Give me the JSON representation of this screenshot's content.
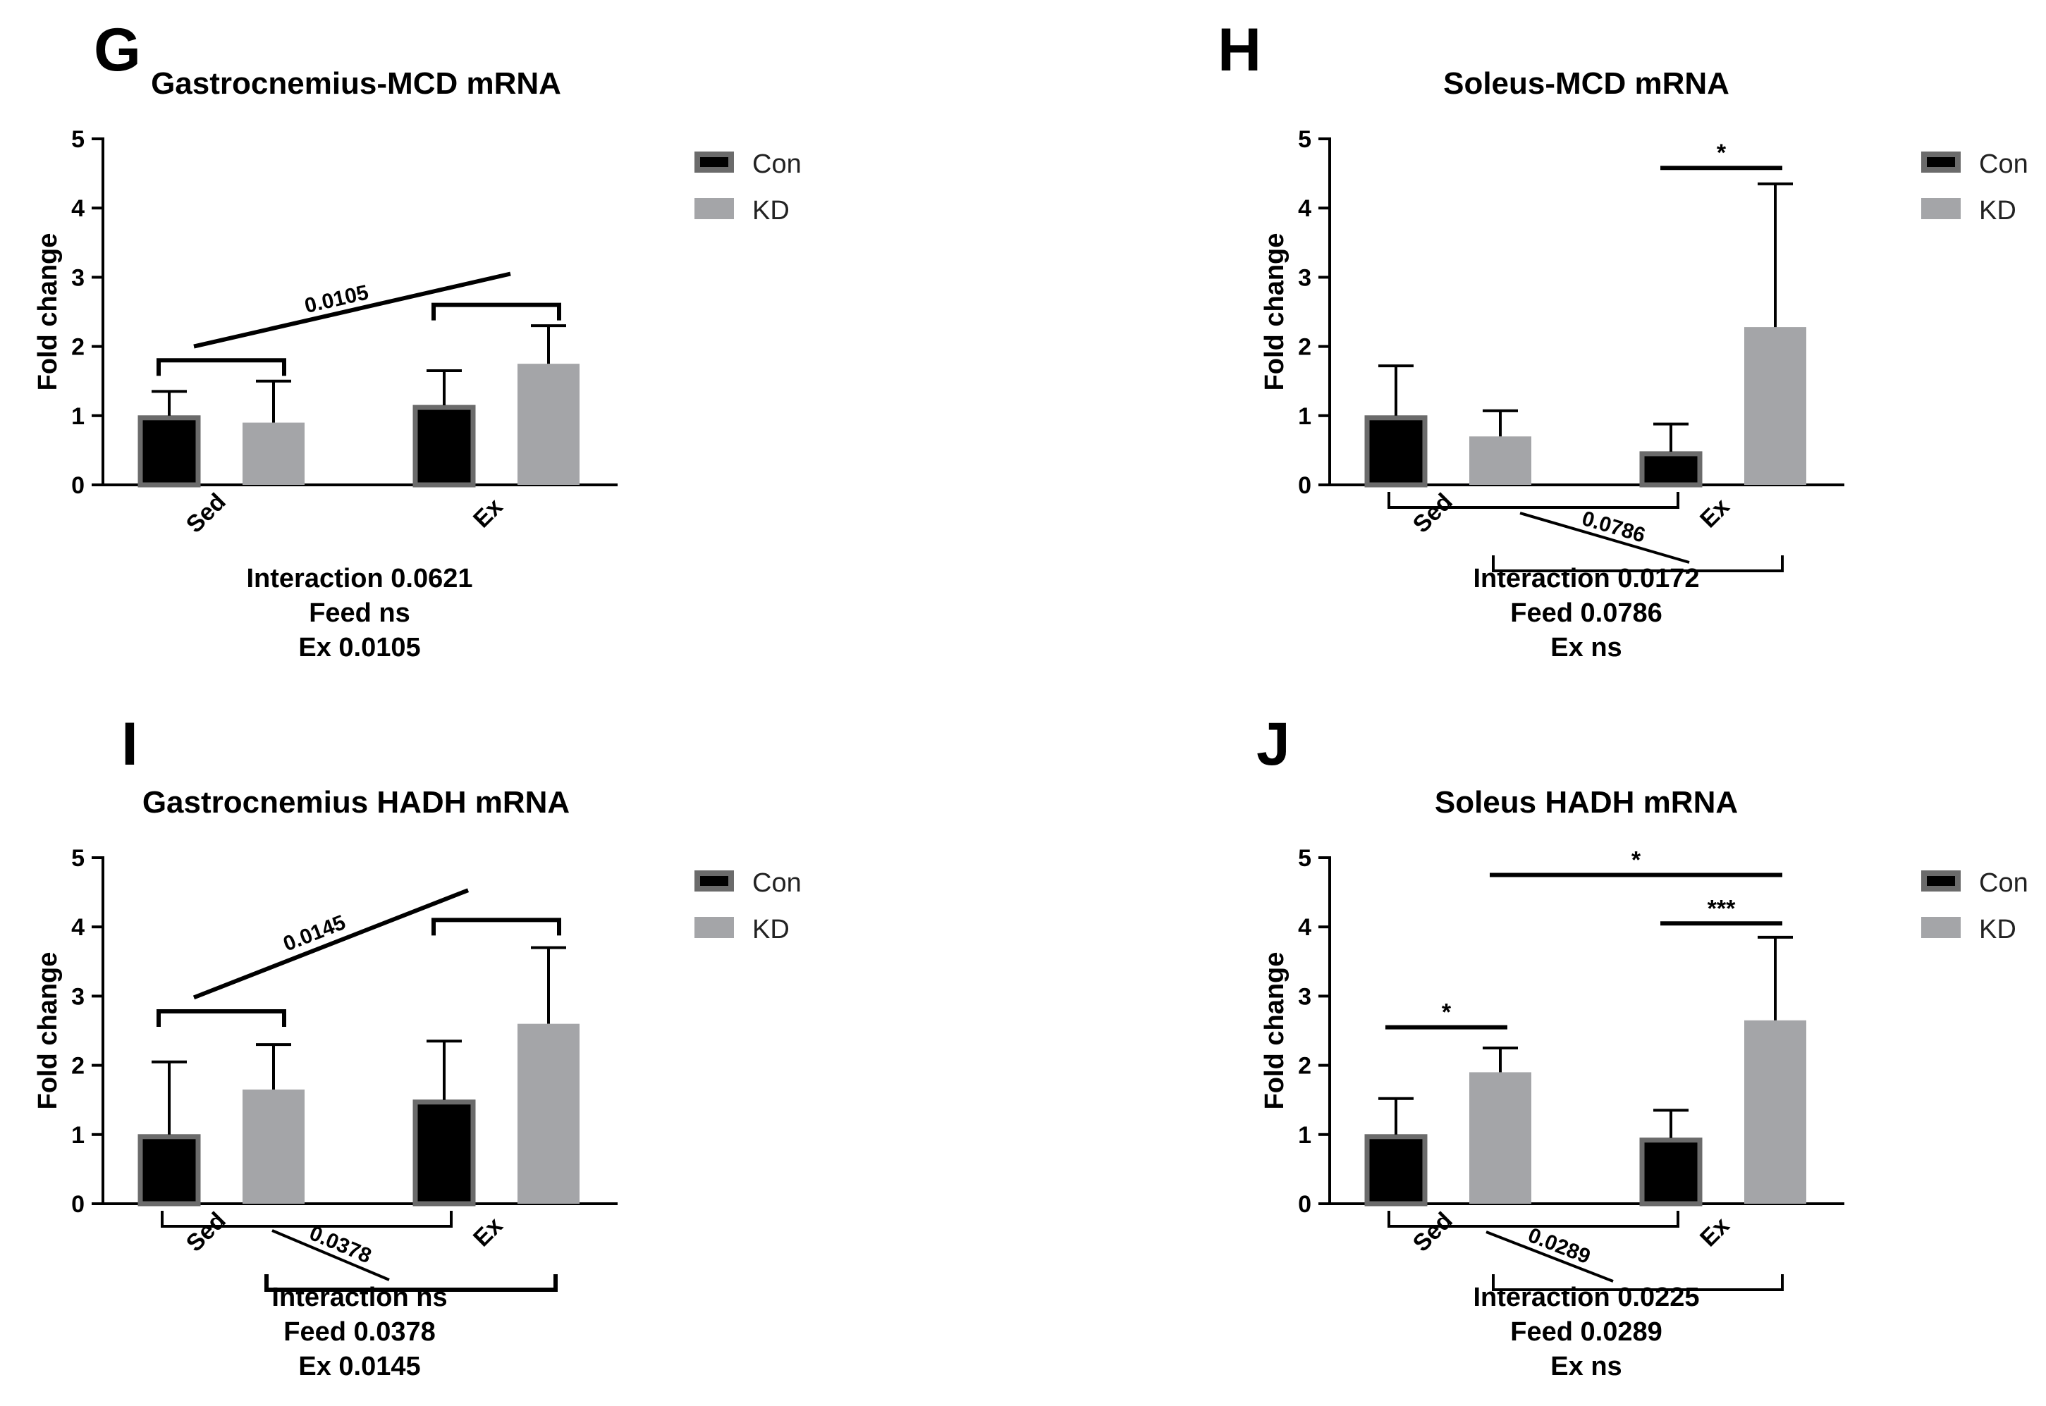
{
  "colors": {
    "con_fill": "#000000",
    "con_stroke": "#6b6b6b",
    "kd_fill": "#a4a5a8",
    "axis": "#000000"
  },
  "legend": [
    {
      "key": "con",
      "label": "Con"
    },
    {
      "key": "kd",
      "label": "KD"
    }
  ],
  "chart_data": [
    {
      "panel": "G",
      "type": "bar",
      "title": "Gastrocnemius-MCD mRNA",
      "ylabel": "Fold change",
      "ylim": [
        0,
        5
      ],
      "yticks": [
        "0",
        "1",
        "2",
        "3",
        "4",
        "5"
      ],
      "categories": [
        "Sed",
        "Ex"
      ],
      "series": [
        {
          "name": "Con",
          "values": [
            1.0,
            1.15
          ],
          "errors": [
            1.35,
            1.65
          ]
        },
        {
          "name": "KD",
          "values": [
            0.9,
            1.75
          ],
          "errors": [
            1.5,
            2.3
          ]
        }
      ],
      "stats": [
        "Interaction 0.0621",
        "Feed ns",
        "Ex 0.0105"
      ],
      "annotations": [
        {
          "kind": "bracket",
          "label": "",
          "y": 1.8,
          "from": "Sed-Con",
          "to": "Sed-KD"
        },
        {
          "kind": "bracket",
          "label": "",
          "y": 2.6,
          "from": "Ex-Con",
          "to": "Ex-KD"
        },
        {
          "kind": "diagonal",
          "label": "0.0105",
          "y_start": 2.0,
          "y_end": 3.05
        }
      ]
    },
    {
      "panel": "H",
      "type": "bar",
      "title": "Soleus-MCD mRNA",
      "ylabel": "Fold change",
      "ylim": [
        0,
        5
      ],
      "yticks": [
        "0",
        "1",
        "2",
        "3",
        "4",
        "5"
      ],
      "categories": [
        "Sed",
        "Ex"
      ],
      "series": [
        {
          "name": "Con",
          "values": [
            1.0,
            0.48
          ],
          "errors": [
            1.72,
            0.88
          ]
        },
        {
          "name": "KD",
          "values": [
            0.7,
            2.28
          ],
          "errors": [
            1.07,
            4.35
          ]
        }
      ],
      "stats": [
        "Interaction 0.0172",
        "Feed 0.0786",
        "Ex ns"
      ],
      "annotations": [
        {
          "kind": "line",
          "label": "*",
          "y": 4.58,
          "from": "Ex-Con",
          "to": "Ex-KD"
        },
        {
          "kind": "under-bracket",
          "label": "",
          "from": "Sed-Con",
          "to": "Ex-Con",
          "level": 1
        },
        {
          "kind": "under-bracket",
          "label": "",
          "from": "Sed-KD",
          "to": "Ex-KD",
          "level": 2
        },
        {
          "kind": "under-diagonal",
          "label": "0.0786"
        }
      ]
    },
    {
      "panel": "I",
      "type": "bar",
      "title": "Gastrocnemius HADH mRNA",
      "ylabel": "Fold change",
      "ylim": [
        0,
        5
      ],
      "yticks": [
        "0",
        "1",
        "2",
        "3",
        "4",
        "5"
      ],
      "categories": [
        "Sed",
        "Ex"
      ],
      "series": [
        {
          "name": "Con",
          "values": [
            1.0,
            1.5
          ],
          "errors": [
            2.05,
            2.35
          ]
        },
        {
          "name": "KD",
          "values": [
            1.65,
            2.6
          ],
          "errors": [
            2.3,
            3.7
          ]
        }
      ],
      "stats": [
        "Interaction ns",
        "Feed 0.0378",
        "Ex 0.0145"
      ],
      "annotations": [
        {
          "kind": "bracket",
          "label": "",
          "y": 2.78,
          "from": "Sed-Con",
          "to": "Sed-KD"
        },
        {
          "kind": "bracket",
          "label": "",
          "y": 4.1,
          "from": "Ex-Con",
          "to": "Ex-KD"
        },
        {
          "kind": "diagonal",
          "label": "0.0145",
          "y_start": 2.98,
          "y_end": 4.53
        },
        {
          "kind": "under-bracket",
          "label": "",
          "from": "Sed-Con",
          "to": "Ex-Con",
          "level": 1
        },
        {
          "kind": "under-bracket",
          "label": "",
          "from": "Sed-KD",
          "to": "Ex-KD",
          "level": 2
        },
        {
          "kind": "under-diagonal",
          "label": "0.0378"
        }
      ]
    },
    {
      "panel": "J",
      "type": "bar",
      "title": "Soleus HADH mRNA",
      "ylabel": "Fold change",
      "ylim": [
        0,
        5
      ],
      "yticks": [
        "0",
        "1",
        "2",
        "3",
        "4",
        "5"
      ],
      "categories": [
        "Sed",
        "Ex"
      ],
      "series": [
        {
          "name": "Con",
          "values": [
            1.0,
            0.95
          ],
          "errors": [
            1.52,
            1.35
          ]
        },
        {
          "name": "KD",
          "values": [
            1.9,
            2.65
          ],
          "errors": [
            2.25,
            3.85
          ]
        }
      ],
      "stats": [
        "Interaction 0.0225",
        "Feed 0.0289",
        "Ex ns"
      ],
      "annotations": [
        {
          "kind": "line",
          "label": "*",
          "y": 2.55,
          "from": "Sed-Con",
          "to": "Sed-KD"
        },
        {
          "kind": "line",
          "label": "***",
          "y": 4.05,
          "from": "Ex-Con",
          "to": "Ex-KD"
        },
        {
          "kind": "line",
          "label": "*",
          "y": 4.75,
          "from": "Sed-KD",
          "to": "Ex-KD"
        },
        {
          "kind": "under-bracket",
          "label": "",
          "from": "Sed-Con",
          "to": "Ex-Con",
          "level": 1
        },
        {
          "kind": "under-bracket",
          "label": "",
          "from": "Sed-KD",
          "to": "Ex-KD",
          "level": 2
        },
        {
          "kind": "under-diagonal",
          "label": "0.0289"
        }
      ]
    }
  ]
}
